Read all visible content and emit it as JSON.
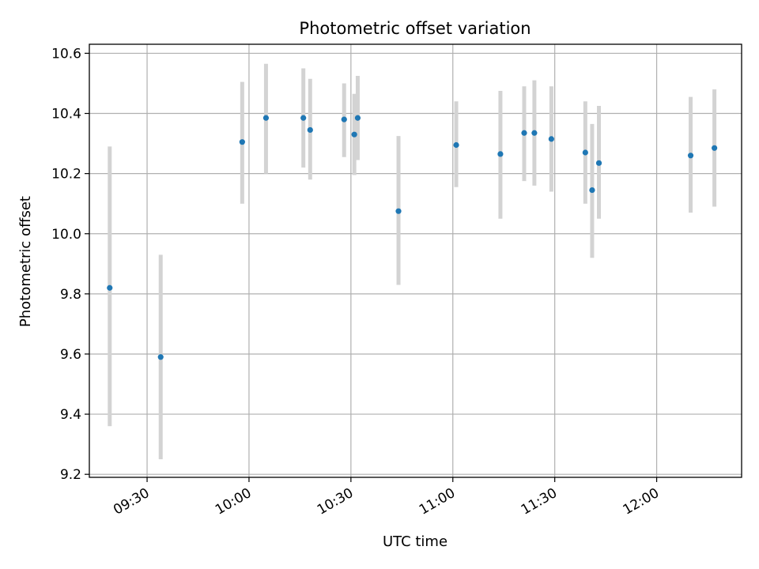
{
  "chart_data": {
    "type": "scatter",
    "title": "Photometric offset variation",
    "xlabel": "UTC time",
    "ylabel": "Photometric offset",
    "xlim": [
      "09:13",
      "12:25"
    ],
    "ylim": [
      9.19,
      10.63
    ],
    "x_ticks": [
      "09:30",
      "10:00",
      "10:30",
      "11:00",
      "11:30",
      "12:00"
    ],
    "y_ticks": [
      9.2,
      9.4,
      9.6,
      9.8,
      10.0,
      10.2,
      10.4,
      10.6
    ],
    "y_tick_labels": [
      "9.2",
      "9.4",
      "9.6",
      "9.8",
      "10.0",
      "10.2",
      "10.4",
      "10.6"
    ],
    "grid": true,
    "colors": {
      "marker": "#1f77b4",
      "errorbar": "#d3d3d3",
      "grid": "#b0b0b0"
    },
    "points": [
      {
        "x": "09:19",
        "y": 9.82,
        "lo": 9.36,
        "hi": 10.29
      },
      {
        "x": "09:34",
        "y": 9.59,
        "lo": 9.25,
        "hi": 9.93
      },
      {
        "x": "09:58",
        "y": 10.305,
        "lo": 10.1,
        "hi": 10.505
      },
      {
        "x": "10:05",
        "y": 10.385,
        "lo": 10.2,
        "hi": 10.565
      },
      {
        "x": "10:16",
        "y": 10.385,
        "lo": 10.22,
        "hi": 10.55
      },
      {
        "x": "10:18",
        "y": 10.345,
        "lo": 10.18,
        "hi": 10.515
      },
      {
        "x": "10:28",
        "y": 10.38,
        "lo": 10.255,
        "hi": 10.5
      },
      {
        "x": "10:31",
        "y": 10.33,
        "lo": 10.195,
        "hi": 10.465
      },
      {
        "x": "10:32",
        "y": 10.385,
        "lo": 10.245,
        "hi": 10.525
      },
      {
        "x": "10:44",
        "y": 10.075,
        "lo": 9.83,
        "hi": 10.325
      },
      {
        "x": "11:01",
        "y": 10.295,
        "lo": 10.155,
        "hi": 10.44
      },
      {
        "x": "11:14",
        "y": 10.265,
        "lo": 10.05,
        "hi": 10.475
      },
      {
        "x": "11:21",
        "y": 10.335,
        "lo": 10.175,
        "hi": 10.49
      },
      {
        "x": "11:24",
        "y": 10.335,
        "lo": 10.16,
        "hi": 10.51
      },
      {
        "x": "11:29",
        "y": 10.315,
        "lo": 10.14,
        "hi": 10.49
      },
      {
        "x": "11:39",
        "y": 10.27,
        "lo": 10.1,
        "hi": 10.44
      },
      {
        "x": "11:41",
        "y": 10.145,
        "lo": 9.92,
        "hi": 10.365
      },
      {
        "x": "11:43",
        "y": 10.235,
        "lo": 10.05,
        "hi": 10.425
      },
      {
        "x": "12:10",
        "y": 10.26,
        "lo": 10.07,
        "hi": 10.455
      },
      {
        "x": "12:17",
        "y": 10.285,
        "lo": 10.09,
        "hi": 10.48
      }
    ]
  }
}
